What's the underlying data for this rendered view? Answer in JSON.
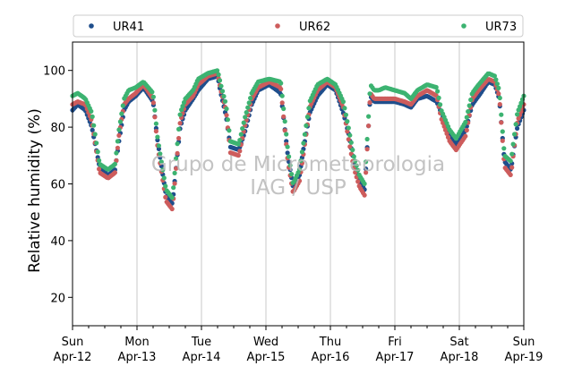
{
  "chart_data": {
    "type": "scatter",
    "title": "",
    "xlabel": "",
    "ylabel": "Relative humidity (%)",
    "xlim": [
      "2019-04-12T00:00",
      "2019-04-19T00:00"
    ],
    "ylim": [
      10,
      110
    ],
    "y_ticks": [
      20,
      40,
      60,
      80,
      100
    ],
    "x_ticks": [
      {
        "day": "Sun",
        "date": "Apr-12"
      },
      {
        "day": "Mon",
        "date": "Apr-13"
      },
      {
        "day": "Tue",
        "date": "Apr-14"
      },
      {
        "day": "Wed",
        "date": "Apr-15"
      },
      {
        "day": "Thu",
        "date": "Apr-16"
      },
      {
        "day": "Fri",
        "date": "Apr-17"
      },
      {
        "day": "Sat",
        "date": "Apr-18"
      },
      {
        "day": "Sun",
        "date": "Apr-19"
      }
    ],
    "grid": "vertical at day boundaries",
    "legend_position": "top",
    "watermark": [
      "Grupo de Micrometeorologia",
      "IAG / USP"
    ],
    "series": [
      {
        "name": "UR41",
        "color": "#1f4e8c",
        "x_day_offset_anchors": [
          0,
          0.08,
          0.2,
          0.3,
          0.42,
          0.55,
          0.66,
          0.72,
          0.8,
          0.87,
          0.98,
          1.1,
          1.25,
          1.32,
          1.45,
          1.55,
          1.67,
          1.75,
          1.87,
          1.95,
          2.1,
          2.25,
          2.3,
          2.38,
          2.45,
          2.58,
          2.67,
          2.78,
          2.88,
          3.05,
          3.23,
          3.34,
          3.42,
          3.52,
          3.58,
          3.68,
          3.8,
          3.95,
          4.08,
          4.2,
          4.28,
          4.36,
          4.45,
          4.53,
          4.62,
          4.68,
          4.75,
          4.85,
          5.0,
          5.15,
          5.25,
          5.35,
          5.5,
          5.65,
          5.72,
          5.85,
          5.95,
          6.1,
          6.2,
          6.3,
          6.45,
          6.55,
          6.62,
          6.7,
          6.8,
          6.9,
          7.0
        ],
        "values": [
          86,
          88,
          86,
          80,
          66,
          63,
          65,
          75,
          86,
          89,
          91,
          94,
          89,
          75,
          56,
          53,
          80,
          86,
          90,
          93,
          97,
          98,
          92,
          84,
          73,
          72,
          78,
          88,
          93,
          95,
          92,
          70,
          59,
          63,
          72,
          85,
          91,
          95,
          93,
          85,
          78,
          68,
          61,
          58,
          91,
          89,
          89,
          89,
          89,
          88,
          87,
          90,
          91,
          89,
          85,
          77,
          74,
          79,
          88,
          91,
          96,
          95,
          90,
          68,
          65,
          80,
          86
        ]
      },
      {
        "name": "UR62",
        "color": "#cd5c5c",
        "x_day_offset_anchors": [
          0,
          0.08,
          0.2,
          0.3,
          0.42,
          0.55,
          0.66,
          0.72,
          0.8,
          0.87,
          0.98,
          1.1,
          1.25,
          1.32,
          1.45,
          1.55,
          1.67,
          1.75,
          1.87,
          1.95,
          2.1,
          2.25,
          2.3,
          2.38,
          2.45,
          2.58,
          2.67,
          2.78,
          2.88,
          3.05,
          3.23,
          3.34,
          3.42,
          3.52,
          3.58,
          3.68,
          3.8,
          3.95,
          4.08,
          4.2,
          4.28,
          4.36,
          4.45,
          4.53,
          4.62,
          4.68,
          4.75,
          4.85,
          5.0,
          5.15,
          5.25,
          5.35,
          5.5,
          5.65,
          5.72,
          5.85,
          5.95,
          6.1,
          6.2,
          6.3,
          6.45,
          6.55,
          6.62,
          6.7,
          6.8,
          6.9,
          7.0
        ],
        "values": [
          88,
          89,
          88,
          82,
          64,
          62,
          64,
          77,
          88,
          90,
          92,
          95,
          90,
          73,
          54,
          51,
          82,
          88,
          91,
          95,
          98,
          99,
          93,
          86,
          71,
          70,
          80,
          90,
          94,
          96,
          94,
          68,
          57,
          61,
          70,
          87,
          93,
          96,
          94,
          87,
          76,
          66,
          59,
          56,
          92,
          90,
          90,
          90,
          90,
          89,
          88,
          91,
          93,
          91,
          83,
          75,
          72,
          77,
          90,
          93,
          97,
          96,
          91,
          66,
          63,
          82,
          88
        ]
      },
      {
        "name": "UR73",
        "color": "#3cb371",
        "x_day_offset_anchors": [
          0,
          0.08,
          0.2,
          0.3,
          0.42,
          0.55,
          0.66,
          0.72,
          0.8,
          0.87,
          0.98,
          1.1,
          1.25,
          1.32,
          1.45,
          1.55,
          1.67,
          1.75,
          1.87,
          1.95,
          2.1,
          2.25,
          2.3,
          2.38,
          2.45,
          2.58,
          2.67,
          2.78,
          2.88,
          3.05,
          3.23,
          3.34,
          3.42,
          3.52,
          3.58,
          3.68,
          3.8,
          3.95,
          4.08,
          4.2,
          4.28,
          4.36,
          4.45,
          4.53,
          4.62,
          4.68,
          4.75,
          4.85,
          5.0,
          5.15,
          5.25,
          5.35,
          5.5,
          5.65,
          5.72,
          5.85,
          5.95,
          6.1,
          6.2,
          6.3,
          6.45,
          6.55,
          6.62,
          6.7,
          6.8,
          6.9,
          7.0
        ],
        "values": [
          91,
          92,
          90,
          85,
          67,
          65,
          67,
          79,
          90,
          93,
          94,
          96,
          92,
          76,
          58,
          55,
          85,
          90,
          93,
          97,
          99,
          100,
          95,
          88,
          75,
          74,
          83,
          92,
          96,
          97,
          96,
          72,
          60,
          65,
          74,
          89,
          95,
          97,
          95,
          89,
          80,
          70,
          63,
          60,
          95,
          93,
          93,
          94,
          93,
          92,
          90,
          93,
          95,
          94,
          86,
          79,
          76,
          82,
          92,
          95,
          99,
          98,
          93,
          70,
          68,
          85,
          91
        ]
      }
    ]
  }
}
